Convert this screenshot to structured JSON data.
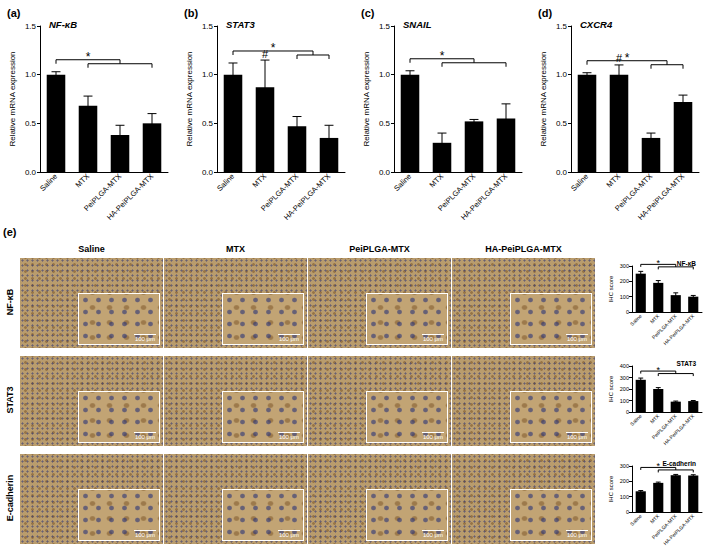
{
  "chart_data": [
    {
      "panel": "(a)",
      "type": "bar",
      "title": "NF-κB",
      "y_label": "Relative mRNA expression",
      "categories": [
        "Saline",
        "MTX",
        "PeiPLGA-MTX",
        "HA-PeiPLGA-MTX"
      ],
      "values": [
        1.0,
        0.68,
        0.38,
        0.5
      ],
      "errors": [
        0.03,
        0.1,
        0.1,
        0.1
      ],
      "color": "#000000",
      "ylim": [
        0,
        1.5
      ],
      "yticks": [
        {
          "value": 0,
          "label": "0.0"
        },
        0.5,
        {
          "value": 1,
          "label": "1.0"
        },
        1.5
      ],
      "grid": false,
      "annotations": [
        {
          "text": "*",
          "reference": "Saline",
          "compared": [
            "MTX",
            "PeiPLGA-MTX",
            "HA-PeiPLGA-MTX"
          ]
        }
      ]
    },
    {
      "panel": "(b)",
      "type": "bar",
      "title": "STAT3",
      "y_label": "Relative mRNA expression",
      "categories": [
        "Saline",
        "MTX",
        "PeiPLGA-MTX",
        "HA-PeiPLGA-MTX"
      ],
      "values": [
        1.0,
        0.87,
        0.47,
        0.35
      ],
      "errors": [
        0.12,
        0.28,
        0.1,
        0.13
      ],
      "color": "#000000",
      "ylim": [
        0,
        1.5
      ],
      "yticks": [
        {
          "value": 0,
          "label": "0.0"
        },
        0.5,
        {
          "value": 1,
          "label": "1.0"
        },
        1.5
      ],
      "grid": false,
      "annotations": [
        {
          "text": "#",
          "category": "MTX"
        },
        {
          "text": "*",
          "reference": "Saline",
          "compared": [
            "PeiPLGA-MTX",
            "HA-PeiPLGA-MTX"
          ]
        }
      ]
    },
    {
      "panel": "(c)",
      "type": "bar",
      "title": "SNAIL",
      "y_label": "Relative mRNA expression",
      "categories": [
        "Saline",
        "MTX",
        "PeiPLGA-MTX",
        "HA-PeiPLGA-MTX"
      ],
      "values": [
        1.0,
        0.3,
        0.52,
        0.55
      ],
      "errors": [
        0.04,
        0.1,
        0.02,
        0.15
      ],
      "color": "#000000",
      "ylim": [
        0,
        1.5
      ],
      "yticks": [
        {
          "value": 0,
          "label": "0.0"
        },
        0.5,
        {
          "value": 1,
          "label": "1.0"
        },
        1.5
      ],
      "grid": false,
      "annotations": [
        {
          "text": "*",
          "reference": "Saline",
          "compared": [
            "MTX",
            "PeiPLGA-MTX",
            "HA-PeiPLGA-MTX"
          ]
        }
      ]
    },
    {
      "panel": "(d)",
      "type": "bar",
      "title": "CXCR4",
      "y_label": "Relative mRNA expression",
      "categories": [
        "Saline",
        "MTX",
        "PeiPLGA-MTX",
        "HA-PeiPLGA-MTX"
      ],
      "values": [
        1.0,
        1.0,
        0.35,
        0.72
      ],
      "errors": [
        0.02,
        0.1,
        0.05,
        0.07
      ],
      "color": "#000000",
      "ylim": [
        0,
        1.5
      ],
      "yticks": [
        {
          "value": 0,
          "label": "0.0"
        },
        0.5,
        {
          "value": 1,
          "label": "1.0"
        },
        1.5
      ],
      "grid": false,
      "annotations": [
        {
          "text": "#",
          "category": "MTX"
        },
        {
          "text": "*",
          "reference": "Saline",
          "compared": [
            "PeiPLGA-MTX",
            "HA-PeiPLGA-MTX"
          ]
        }
      ]
    },
    {
      "type": "bar",
      "title": "NF-κB",
      "y_label": "IHC score",
      "categories": [
        "Saline",
        "MTX",
        "PeiPLGA-MTX",
        "HA-PeiPLGA-MTX"
      ],
      "values": [
        250,
        190,
        110,
        100
      ],
      "errors": [
        15,
        15,
        15,
        8
      ],
      "color": "#000000",
      "ylim": [
        0,
        300
      ],
      "yticks": [
        0,
        100,
        200,
        300
      ],
      "grid": false,
      "annotations": [
        {
          "text": "*",
          "reference": "Saline",
          "compared": [
            "MTX",
            "PeiPLGA-MTX",
            "HA-PeiPLGA-MTX"
          ]
        }
      ]
    },
    {
      "type": "bar",
      "title": "STAT3",
      "y_label": "IHC score",
      "categories": [
        "Saline",
        "MTX",
        "PeiPLGA-MTX",
        "HA-PeiPLGA-MTX"
      ],
      "values": [
        280,
        200,
        90,
        95
      ],
      "errors": [
        15,
        12,
        5,
        5
      ],
      "color": "#000000",
      "ylim": [
        0,
        400
      ],
      "yticks": [
        0,
        100,
        200,
        300,
        400
      ],
      "grid": false,
      "annotations": [
        {
          "text": "*",
          "reference": "Saline",
          "compared": [
            "MTX",
            "PeiPLGA-MTX",
            "HA-PeiPLGA-MTX"
          ]
        }
      ]
    },
    {
      "type": "bar",
      "title": "E-cadherin",
      "y_label": "IHC score",
      "categories": [
        "Saline",
        "MTX",
        "PeiPLGA-MTX",
        "HA-PeiPLGA-MTX"
      ],
      "values": [
        135,
        190,
        240,
        238
      ],
      "errors": [
        5,
        5,
        5,
        5
      ],
      "color": "#000000",
      "ylim": [
        0,
        300
      ],
      "yticks": [
        0,
        100,
        200,
        300
      ],
      "grid": false,
      "annotations": [
        {
          "text": "*",
          "reference": "Saline",
          "compared": [
            "MTX",
            "PeiPLGA-MTX",
            "HA-PeiPLGA-MTX"
          ]
        }
      ]
    }
  ],
  "image_panel": {
    "label": "(e)",
    "columns": [
      "Saline",
      "MTX",
      "PeiPLGA-MTX",
      "HA-PeiPLGA-MTX"
    ],
    "rows": [
      "NF-κB",
      "STAT3",
      "E-cadherin"
    ],
    "scale_bar": "100 μm"
  }
}
